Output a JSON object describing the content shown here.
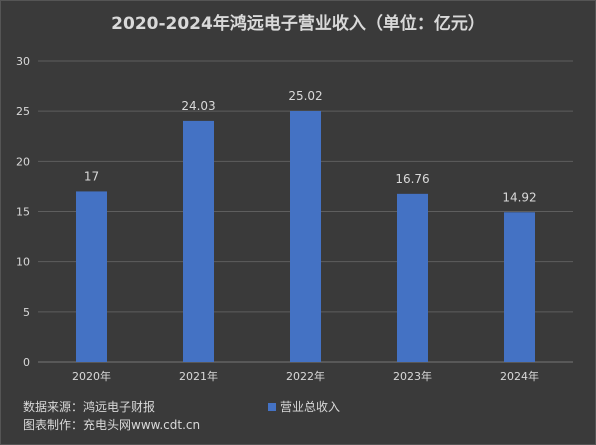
{
  "chart_data": {
    "type": "bar",
    "title": "2020-2024年鸿远电子营业收入（单位：亿元）",
    "categories": [
      "2020年",
      "2021年",
      "2022年",
      "2023年",
      "2024年"
    ],
    "series": [
      {
        "name": "营业总收入",
        "values": [
          17,
          24.03,
          25.02,
          16.76,
          14.92
        ],
        "color": "#4472c4"
      }
    ],
    "data_labels": [
      "17",
      "24.03",
      "25.02",
      "16.76",
      "14.92"
    ],
    "ylim": [
      0,
      30
    ],
    "yticks": [
      "0",
      "5",
      "10",
      "15",
      "20",
      "25",
      "30"
    ],
    "grid": true,
    "legend_position": "bottom"
  },
  "footer": {
    "source": "数据来源：鸿远电子财报",
    "maker": "图表制作：充电头网www.cdt.cn"
  },
  "colors": {
    "background": "#3a3a3a",
    "text": "#d9d9d9",
    "grid": "#5e5e5e",
    "bar": "#4472c4"
  }
}
